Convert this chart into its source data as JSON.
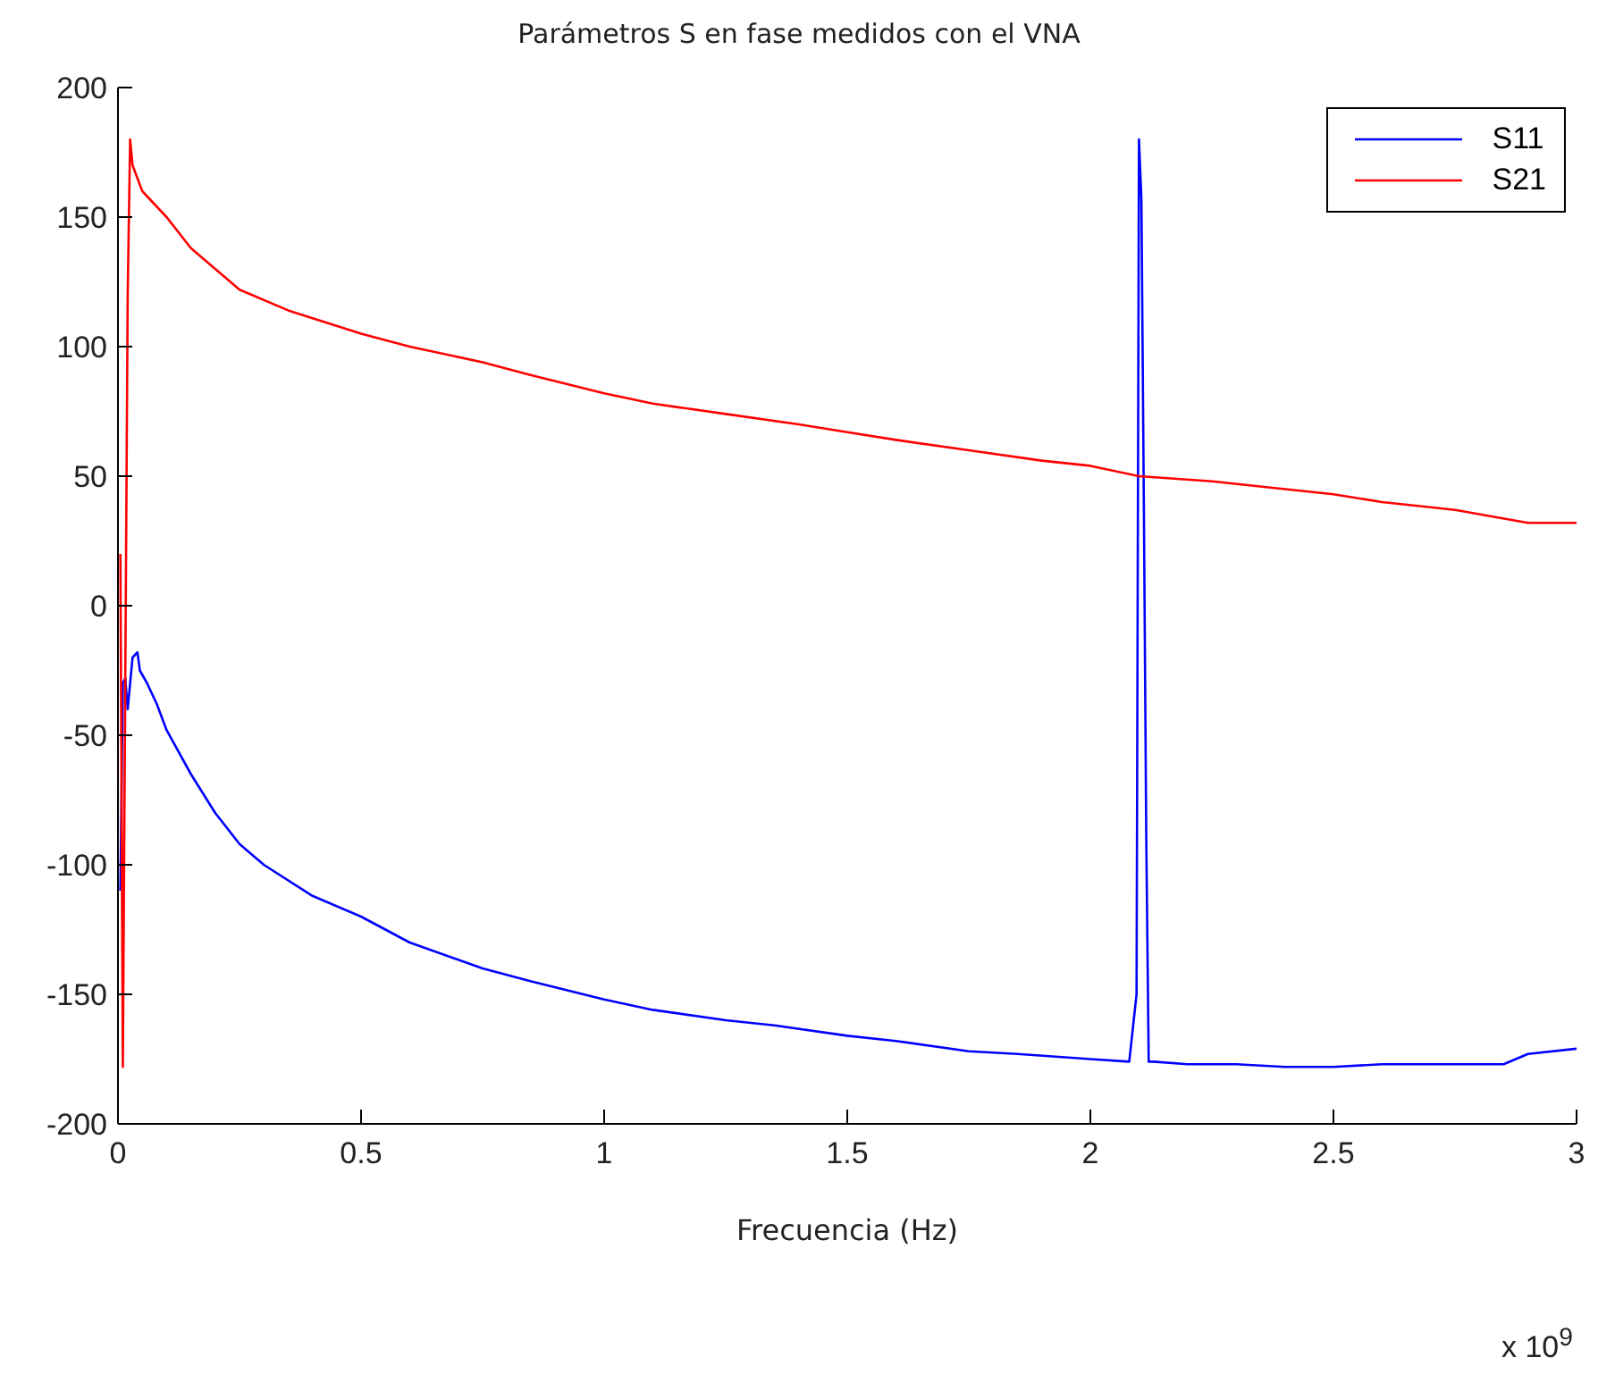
{
  "chart_data": {
    "type": "line",
    "title": "Parámetros S en fase medidos con el VNA",
    "xlabel": "Frecuencia (Hz)",
    "annotations": [
      "x 10$^{9}$"
    ],
    "xlim": [
      0,
      3
    ],
    "xticks": [
      0,
      0.5,
      1,
      1.5,
      2,
      2.5,
      3
    ],
    "ylim": [
      -200,
      200
    ],
    "yticks": [
      -200,
      -150,
      -100,
      -50,
      0,
      50,
      100,
      150,
      200
    ],
    "grid": false,
    "legend": "top right",
    "series": [
      {
        "name": "S11",
        "color": "#0000ff",
        "x": [
          0.005,
          0.01,
          0.015,
          0.02,
          0.03,
          0.04,
          0.045,
          0.06,
          0.08,
          0.1,
          0.15,
          0.2,
          0.25,
          0.3,
          0.4,
          0.5,
          0.6,
          0.75,
          0.85,
          1,
          1.1,
          1.25,
          1.35,
          1.5,
          1.6,
          1.75,
          1.85,
          2,
          2.08,
          2.095,
          2.1,
          2.105,
          2.11,
          2.115,
          2.12,
          2.13,
          2.2,
          2.3,
          2.4,
          2.5,
          2.6,
          2.75,
          2.85,
          2.9,
          3
        ],
        "values": [
          -110,
          -30,
          -28,
          -40,
          -20,
          -18,
          -25,
          -30,
          -38,
          -48,
          -65,
          -80,
          -92,
          -100,
          -112,
          -120,
          -130,
          -140,
          -145,
          -152,
          -156,
          -160,
          -162,
          -166,
          -168,
          -172,
          -173,
          -175,
          -176,
          -150,
          180,
          157,
          40,
          -90,
          -176,
          -176,
          -177,
          -177,
          -178,
          -178,
          -177,
          -177,
          -177,
          -173,
          -171
        ]
      },
      {
        "name": "S21",
        "color": "#ff0000",
        "x": [
          0.005,
          0.01,
          0.015,
          0.02,
          0.025,
          0.03,
          0.05,
          0.1,
          0.15,
          0.2,
          0.25,
          0.35,
          0.5,
          0.6,
          0.75,
          0.85,
          1,
          1.1,
          1.25,
          1.4,
          1.5,
          1.6,
          1.75,
          1.9,
          2,
          2.1,
          2.25,
          2.4,
          2.5,
          2.6,
          2.75,
          2.9,
          3
        ],
        "values": [
          20,
          -178,
          -30,
          120,
          180,
          170,
          160,
          150,
          138,
          130,
          122,
          114,
          105,
          100,
          94,
          89,
          82,
          78,
          74,
          70,
          67,
          64,
          60,
          56,
          54,
          50,
          48,
          45,
          43,
          40,
          37,
          32,
          32
        ]
      }
    ]
  }
}
